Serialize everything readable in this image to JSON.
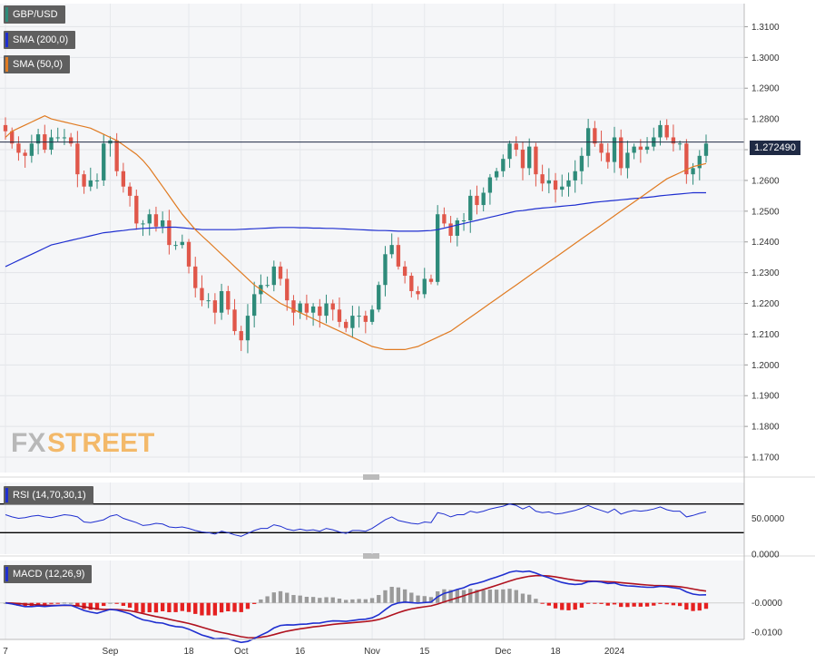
{
  "legends": {
    "price": {
      "label": "GBP/USD",
      "color": "#2e8b7a"
    },
    "sma200": {
      "label": "SMA (200,0)",
      "color": "#1f2fd0"
    },
    "sma50": {
      "label": "SMA (50,0)",
      "color": "#e07b22"
    },
    "rsi": {
      "label": "RSI (14,70,30,1)",
      "color": "#1f2fd0"
    },
    "macd": {
      "label": "MACD (12,26,9)",
      "color": "#1f2fd0"
    }
  },
  "watermark": {
    "fx": "FX",
    "street": "STREET"
  },
  "last_price": "1.272490",
  "chart_data": [
    {
      "type": "candlestick",
      "ylim": [
        1.165,
        1.3175
      ],
      "yticks": [
        "1.1700",
        "1.1800",
        "1.1900",
        "1.2000",
        "1.2100",
        "1.2200",
        "1.2300",
        "1.2400",
        "1.2500",
        "1.2600",
        "1.2700",
        "1.2800",
        "1.2900",
        "1.3000",
        "1.3100"
      ],
      "x_labels": [
        "7",
        "Sep",
        "18",
        "Oct",
        "16",
        "Nov",
        "15",
        "Dec",
        "18",
        "2024"
      ],
      "colors": {
        "up": "#2e8b7a",
        "down": "#e0574a"
      },
      "candles_close": [
        1.276,
        1.272,
        1.269,
        1.268,
        1.272,
        1.275,
        1.27,
        1.274,
        1.274,
        1.274,
        1.272,
        1.262,
        1.258,
        1.26,
        1.26,
        1.272,
        1.273,
        1.263,
        1.258,
        1.255,
        1.246,
        1.246,
        1.249,
        1.245,
        1.247,
        1.239,
        1.239,
        1.24,
        1.232,
        1.225,
        1.221,
        1.221,
        1.217,
        1.224,
        1.218,
        1.211,
        1.208,
        1.216,
        1.223,
        1.226,
        1.226,
        1.232,
        1.228,
        1.221,
        1.217,
        1.22,
        1.217,
        1.219,
        1.216,
        1.22,
        1.218,
        1.214,
        1.212,
        1.216,
        1.216,
        1.214,
        1.218,
        1.226,
        1.236,
        1.239,
        1.232,
        1.229,
        1.224,
        1.223,
        1.228,
        1.227,
        1.249,
        1.246,
        1.242,
        1.247,
        1.247,
        1.255,
        1.252,
        1.256,
        1.261,
        1.263,
        1.267,
        1.272,
        1.27,
        1.264,
        1.271,
        1.262,
        1.259,
        1.26,
        1.257,
        1.258,
        1.26,
        1.263,
        1.268,
        1.277,
        1.272,
        1.269,
        1.266,
        1.274,
        1.264,
        1.269,
        1.271,
        1.27,
        1.271,
        1.274,
        1.278,
        1.274,
        1.272,
        1.272,
        1.262,
        1.264,
        1.268,
        1.272
      ],
      "sma200": [
        1.232,
        1.233,
        1.234,
        1.235,
        1.236,
        1.237,
        1.238,
        1.239,
        1.2395,
        1.24,
        1.2405,
        1.241,
        1.2415,
        1.242,
        1.2425,
        1.243,
        1.2432,
        1.2435,
        1.2437,
        1.244,
        1.2442,
        1.2444,
        1.2445,
        1.2446,
        1.2447,
        1.2448,
        1.2448,
        1.2446,
        1.2444,
        1.2442,
        1.244,
        1.244,
        1.244,
        1.244,
        1.244,
        1.244,
        1.2441,
        1.2442,
        1.2443,
        1.2444,
        1.2445,
        1.2446,
        1.2447,
        1.2447,
        1.2447,
        1.2446,
        1.2446,
        1.2445,
        1.2445,
        1.2444,
        1.2444,
        1.2443,
        1.2442,
        1.2441,
        1.244,
        1.2439,
        1.2438,
        1.2437,
        1.2437,
        1.2436,
        1.2435,
        1.2435,
        1.2435,
        1.2435,
        1.2436,
        1.2437,
        1.244,
        1.2445,
        1.245,
        1.2455,
        1.246,
        1.2465,
        1.247,
        1.2475,
        1.248,
        1.2485,
        1.249,
        1.2495,
        1.25,
        1.2502,
        1.2505,
        1.2508,
        1.251,
        1.2512,
        1.2514,
        1.2516,
        1.2518,
        1.252,
        1.2523,
        1.2526,
        1.2529,
        1.2531,
        1.2533,
        1.2535,
        1.2537,
        1.2539,
        1.2541,
        1.2543,
        1.2545,
        1.2547,
        1.255,
        1.2552,
        1.2554,
        1.2556,
        1.2558,
        1.256,
        1.256,
        1.256
      ],
      "sma50": [
        1.274,
        1.276,
        1.277,
        1.278,
        1.279,
        1.28,
        1.281,
        1.28,
        1.2795,
        1.279,
        1.2785,
        1.278,
        1.2775,
        1.277,
        1.276,
        1.275,
        1.274,
        1.273,
        1.2715,
        1.27,
        1.2685,
        1.2665,
        1.264,
        1.261,
        1.258,
        1.255,
        1.252,
        1.249,
        1.2465,
        1.244,
        1.242,
        1.24,
        1.238,
        1.236,
        1.234,
        1.232,
        1.23,
        1.228,
        1.226,
        1.2245,
        1.223,
        1.2215,
        1.22,
        1.219,
        1.218,
        1.217,
        1.216,
        1.215,
        1.214,
        1.213,
        1.212,
        1.211,
        1.21,
        1.209,
        1.208,
        1.207,
        1.206,
        1.2055,
        1.205,
        1.205,
        1.205,
        1.205,
        1.2055,
        1.206,
        1.207,
        1.208,
        1.209,
        1.21,
        1.211,
        1.2125,
        1.214,
        1.2155,
        1.217,
        1.2185,
        1.22,
        1.2215,
        1.223,
        1.2245,
        1.226,
        1.2275,
        1.229,
        1.2305,
        1.232,
        1.2335,
        1.235,
        1.2365,
        1.238,
        1.2395,
        1.241,
        1.2425,
        1.244,
        1.2455,
        1.247,
        1.2485,
        1.25,
        1.2515,
        1.253,
        1.2545,
        1.256,
        1.2575,
        1.259,
        1.2605,
        1.2615,
        1.2625,
        1.2635,
        1.2645,
        1.265,
        1.2655
      ]
    },
    {
      "type": "line",
      "name": "RSI (14,70,30,1)",
      "ylim": [
        0,
        100
      ],
      "yticks": [
        "0.0000",
        "50.0000"
      ],
      "levels": [
        70,
        30
      ],
      "values": [
        55,
        52,
        50,
        51,
        53,
        54,
        52,
        51,
        53,
        55,
        54,
        52,
        45,
        44,
        46,
        48,
        53,
        55,
        50,
        47,
        44,
        40,
        41,
        43,
        42,
        38,
        37,
        38,
        36,
        33,
        31,
        30,
        28,
        32,
        30,
        27,
        25,
        29,
        33,
        36,
        36,
        41,
        39,
        35,
        33,
        35,
        33,
        34,
        32,
        36,
        34,
        31,
        29,
        33,
        33,
        32,
        36,
        42,
        48,
        52,
        47,
        45,
        43,
        42,
        45,
        44,
        58,
        56,
        52,
        55,
        55,
        60,
        58,
        60,
        63,
        65,
        67,
        70,
        68,
        63,
        67,
        60,
        58,
        59,
        56,
        57,
        59,
        61,
        64,
        68,
        64,
        61,
        58,
        63,
        56,
        59,
        61,
        60,
        61,
        63,
        66,
        62,
        60,
        60,
        52,
        54,
        57,
        59
      ]
    },
    {
      "type": "bar+line",
      "name": "MACD (12,26,9)",
      "ylim": [
        -0.0125,
        0.0145
      ],
      "yticks": [
        "-0.0000",
        "-0.0100"
      ],
      "colors": {
        "macd": "#1f2fd0",
        "signal": "#b0121f",
        "hist_pos": "#9a9a9a",
        "hist_neg": "#e52020"
      }
    }
  ]
}
